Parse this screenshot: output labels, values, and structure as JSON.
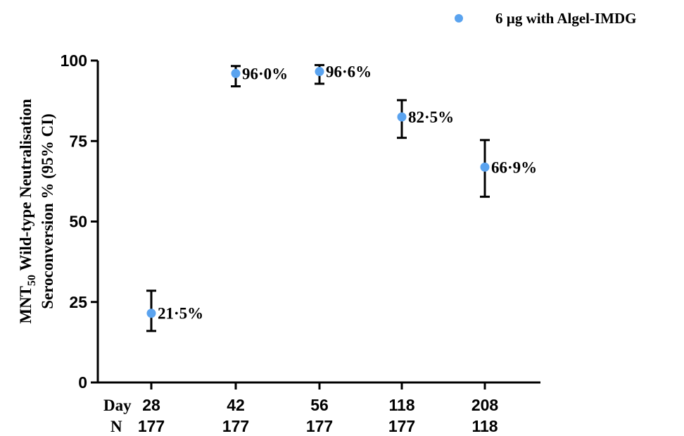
{
  "chart_data": {
    "type": "scatter",
    "title": "",
    "ylabel": {
      "line1_main": "MNT",
      "line1_sub": "50",
      "line1_rest": " Wild-type Neutralisation",
      "line2": "Seroconversion % (95% CI)"
    },
    "x_row_labels": [
      "Day",
      "N"
    ],
    "categories": [
      "28",
      "42",
      "56",
      "118",
      "208"
    ],
    "n_values": [
      "177",
      "177",
      "177",
      "177",
      "118"
    ],
    "ylim": [
      0,
      100
    ],
    "yticks": [
      "0",
      "25",
      "50",
      "75",
      "100"
    ],
    "series": [
      {
        "name": "6 µg with Algel-IMDG",
        "color": "#5aa3ef",
        "values": [
          21.5,
          96.0,
          96.6,
          82.5,
          66.9
        ],
        "ci_low": [
          16.0,
          92.0,
          92.8,
          76.0,
          57.7
        ],
        "ci_high": [
          28.5,
          98.3,
          98.6,
          87.7,
          75.3
        ],
        "labels": [
          "21·5%",
          "96·0%",
          "96·6%",
          "82·5%",
          "66·9%"
        ]
      }
    ],
    "legend_position": "top-right",
    "grid": false
  }
}
